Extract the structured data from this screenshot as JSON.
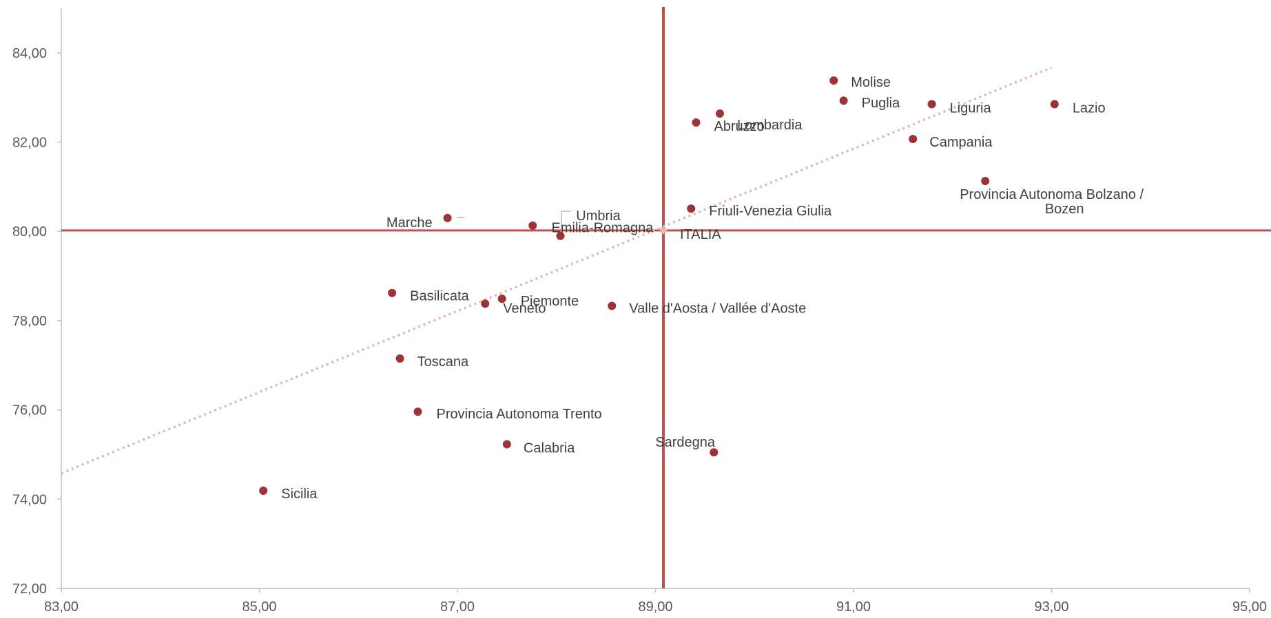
{
  "chart_data": {
    "type": "scatter",
    "title": "",
    "xlabel": "",
    "ylabel": "",
    "xlim": [
      83,
      95
    ],
    "ylim": [
      72,
      85
    ],
    "x_ticks": [
      "83,00",
      "85,00",
      "87,00",
      "89,00",
      "91,00",
      "93,00",
      "95,00"
    ],
    "y_ticks": [
      "72,00",
      "74,00",
      "76,00",
      "78,00",
      "80,00",
      "82,00",
      "84,00"
    ],
    "grid": false,
    "reference_lines": {
      "x": 89.08,
      "y": 80.02,
      "color": "#c0504d"
    },
    "trendline": {
      "style": "dotted",
      "color": "#e6b4b3",
      "x_start": 83.0,
      "y_start": 74.58,
      "x_end": 93.0,
      "y_end": 83.67
    },
    "marker_color": "#9e3337",
    "points": [
      {
        "label": "Molise",
        "x": 90.8,
        "y": 83.38
      },
      {
        "label": "Puglia",
        "x": 90.9,
        "y": 82.93
      },
      {
        "label": "Lombardia",
        "x": 89.65,
        "y": 82.64
      },
      {
        "label": "Abruzzo",
        "x": 89.41,
        "y": 82.44
      },
      {
        "label": "Liguria",
        "x": 91.79,
        "y": 82.85
      },
      {
        "label": "Lazio",
        "x": 93.03,
        "y": 82.85
      },
      {
        "label": "Campania",
        "x": 91.6,
        "y": 82.07
      },
      {
        "label": "Provincia Autonoma Bolzano / Bozen",
        "x": 92.33,
        "y": 81.13
      },
      {
        "label": "Friuli-Venezia Giulia",
        "x": 89.36,
        "y": 80.51
      },
      {
        "label": "Marche",
        "x": 86.9,
        "y": 80.3
      },
      {
        "label": "Umbria",
        "x": 87.76,
        "y": 80.13
      },
      {
        "label": "Emilia-Romagna",
        "x": 88.04,
        "y": 79.9
      },
      {
        "label": "ITALIA",
        "x": 89.08,
        "y": 80.02
      },
      {
        "label": "Basilicata",
        "x": 86.34,
        "y": 78.62
      },
      {
        "label": "Piemonte",
        "x": 87.45,
        "y": 78.49
      },
      {
        "label": "Veneto",
        "x": 87.28,
        "y": 78.38
      },
      {
        "label": "Valle d'Aosta / Vallée d'Aoste",
        "x": 88.56,
        "y": 78.33
      },
      {
        "label": "Toscana",
        "x": 86.42,
        "y": 77.15
      },
      {
        "label": "Provincia Autonoma Trento",
        "x": 86.6,
        "y": 75.96
      },
      {
        "label": "Calabria",
        "x": 87.5,
        "y": 75.23
      },
      {
        "label": "Sardegna",
        "x": 89.59,
        "y": 75.05
      },
      {
        "label": "Sicilia",
        "x": 85.04,
        "y": 74.19
      }
    ]
  }
}
